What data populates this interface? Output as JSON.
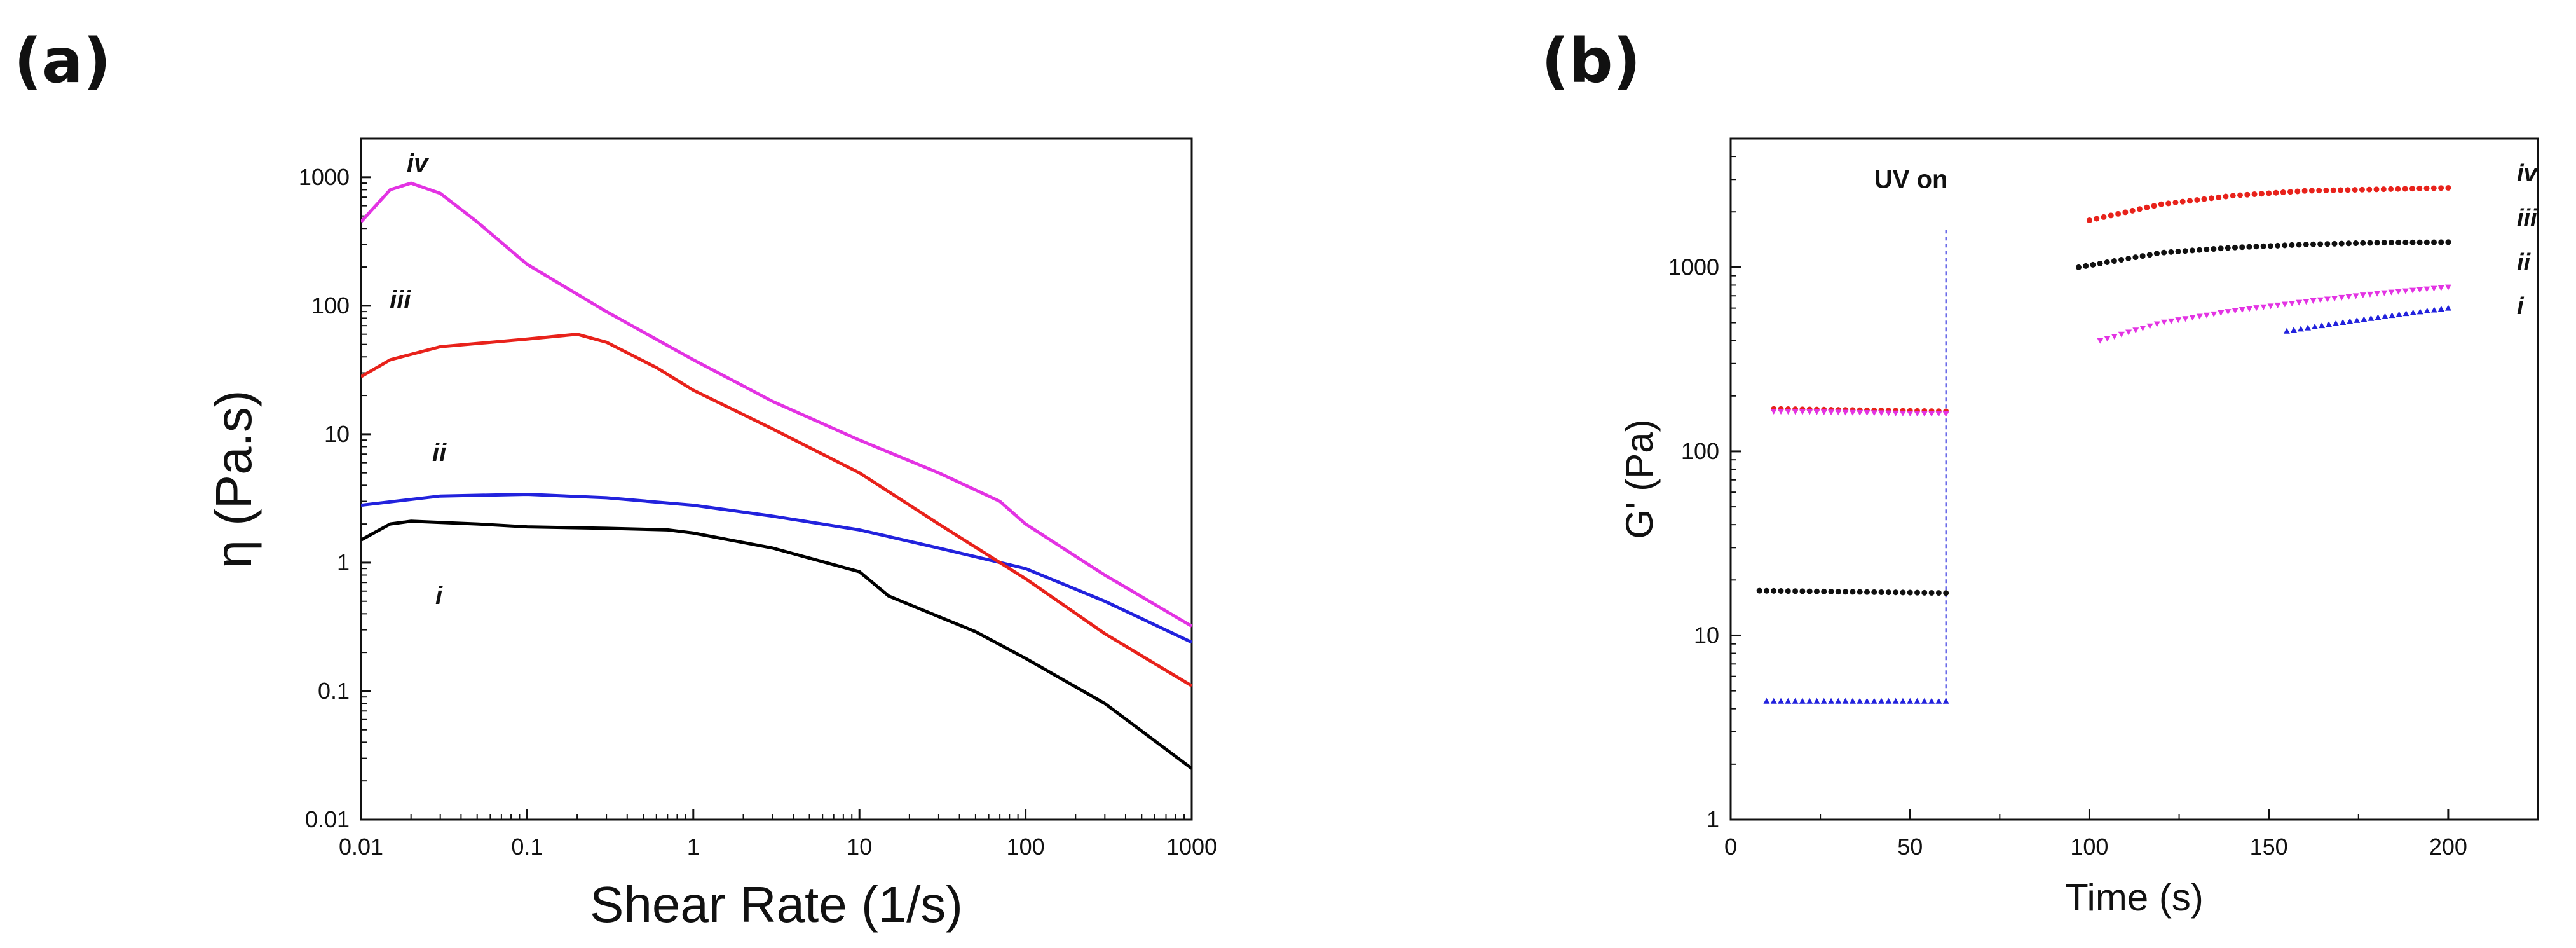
{
  "panels": {
    "a": "(a)",
    "b": "(b)"
  },
  "chart_data": [
    {
      "type": "line",
      "id": "a",
      "title": "",
      "xlabel": "Shear Rate (1/s)",
      "ylabel": "η (Pa.s)",
      "xscale": "log",
      "yscale": "log",
      "xlim": [
        0.01,
        1000
      ],
      "ylim": [
        0.01,
        2000
      ],
      "xticks": [
        0.01,
        0.1,
        1,
        10,
        100,
        1000
      ],
      "xtick_labels": [
        "0.01",
        "0.1",
        "1",
        "10",
        "100",
        "1000"
      ],
      "yticks": [
        0.01,
        0.1,
        1,
        10,
        100,
        1000
      ],
      "ytick_labels": [
        "0.01",
        "0.1",
        "1",
        "10",
        "100",
        "1000"
      ],
      "series": [
        {
          "name": "i",
          "color": "#000000",
          "x": [
            0.01,
            0.015,
            0.02,
            0.05,
            0.1,
            0.3,
            0.7,
            1,
            3,
            10,
            15,
            30,
            50,
            100,
            300,
            1000
          ],
          "y": [
            1.5,
            2.0,
            2.1,
            2.0,
            1.9,
            1.85,
            1.8,
            1.7,
            1.3,
            0.85,
            0.55,
            0.38,
            0.29,
            0.18,
            0.08,
            0.025
          ]
        },
        {
          "name": "ii",
          "color": "#2222dd",
          "x": [
            0.01,
            0.03,
            0.1,
            0.3,
            1,
            3,
            10,
            30,
            100,
            300,
            1000
          ],
          "y": [
            2.8,
            3.3,
            3.4,
            3.2,
            2.8,
            2.3,
            1.8,
            1.3,
            0.9,
            0.5,
            0.24
          ]
        },
        {
          "name": "iii",
          "color": "#e8221b",
          "x": [
            0.01,
            0.015,
            0.03,
            0.1,
            0.2,
            0.3,
            0.6,
            1,
            3,
            10,
            30,
            100,
            300,
            1000
          ],
          "y": [
            28,
            38,
            48,
            55,
            60,
            52,
            33,
            22,
            11,
            5,
            2,
            0.75,
            0.28,
            0.11
          ]
        },
        {
          "name": "iv",
          "color": "#e333e3",
          "x": [
            0.01,
            0.015,
            0.02,
            0.03,
            0.05,
            0.1,
            0.3,
            1,
            3,
            10,
            30,
            70,
            100,
            300,
            1000
          ],
          "y": [
            450,
            800,
            900,
            750,
            450,
            210,
            90,
            38,
            18,
            9,
            5,
            3,
            2,
            0.8,
            0.32
          ]
        }
      ],
      "series_labels": [
        "i",
        "ii",
        "iii",
        "iv"
      ]
    },
    {
      "type": "scatter",
      "id": "b",
      "title": "",
      "xlabel": "Time (s)",
      "ylabel": "G' (Pa)",
      "xscale": "linear",
      "yscale": "log",
      "xlim": [
        0,
        225
      ],
      "ylim": [
        1,
        5000
      ],
      "xticks": [
        0,
        50,
        100,
        150,
        200
      ],
      "xtick_labels": [
        "0",
        "50",
        "100",
        "150",
        "200"
      ],
      "yticks": [
        1,
        10,
        100,
        1000
      ],
      "ytick_labels": [
        "1",
        "10",
        "100",
        "1000"
      ],
      "annotation": {
        "text": "UV on",
        "x": 60
      },
      "series": [
        {
          "name": "iv",
          "color": "#e8221b",
          "marker": "circle",
          "segments": [
            {
              "x": [
                12,
                60
              ],
              "y": [
                170,
                165
              ]
            },
            {
              "x": [
                100,
                120,
                140,
                160,
                180,
                200
              ],
              "y": [
                1800,
                2200,
                2450,
                2600,
                2650,
                2700
              ]
            }
          ]
        },
        {
          "name": "iii",
          "color": "#111111",
          "marker": "circle",
          "segments": [
            {
              "x": [
                8,
                60
              ],
              "y": [
                17.5,
                17.0
              ]
            },
            {
              "x": [
                97,
                120,
                140,
                160,
                180,
                200
              ],
              "y": [
                1000,
                1200,
                1280,
                1330,
                1360,
                1370
              ]
            }
          ]
        },
        {
          "name": "ii",
          "color": "#e333e3",
          "marker": "triangle-down",
          "segments": [
            {
              "x": [
                12,
                60
              ],
              "y": [
                165,
                160
              ]
            },
            {
              "x": [
                103,
                120,
                140,
                160,
                180,
                200
              ],
              "y": [
                400,
                500,
                580,
                650,
                720,
                780
              ]
            }
          ]
        },
        {
          "name": "i",
          "color": "#2222dd",
          "marker": "triangle-up",
          "segments": [
            {
              "x": [
                10,
                60
              ],
              "y": [
                4.4,
                4.4
              ]
            },
            {
              "x": [
                155,
                170,
                185,
                200
              ],
              "y": [
                450,
                500,
                550,
                600
              ]
            }
          ]
        }
      ],
      "series_labels": [
        "iv",
        "iii",
        "ii",
        "i"
      ]
    }
  ]
}
